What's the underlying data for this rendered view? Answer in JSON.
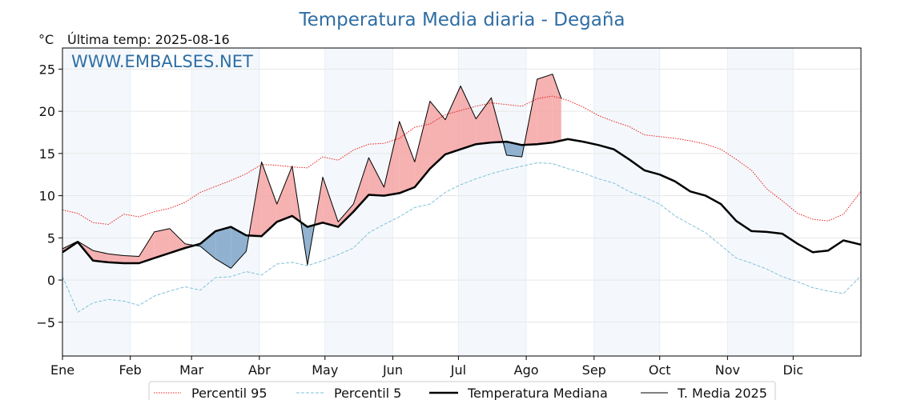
{
  "page": {
    "title": "Temperatura Media diaria - Degaña",
    "unit_label": "°C",
    "last_temp_label": "Última temp: 2025-08-16",
    "watermark": "WWW.EMBALSES.NET"
  },
  "chart_data": {
    "type": "line",
    "title": "Temperatura Media diaria - Degaña",
    "ylabel": "°C",
    "ylim": [
      -9,
      27.5
    ],
    "xlim": [
      1,
      366
    ],
    "yticks": [
      -5,
      0,
      5,
      10,
      15,
      20,
      25
    ],
    "grid": true,
    "legend_position": "bottom",
    "months": [
      {
        "label": "Ene",
        "start": 1
      },
      {
        "label": "Feb",
        "start": 32
      },
      {
        "label": "Mar",
        "start": 60
      },
      {
        "label": "Abr",
        "start": 91
      },
      {
        "label": "May",
        "start": 121
      },
      {
        "label": "Jun",
        "start": 152
      },
      {
        "label": "Jul",
        "start": 182
      },
      {
        "label": "Ago",
        "start": 213
      },
      {
        "label": "Sep",
        "start": 244
      },
      {
        "label": "Oct",
        "start": 274
      },
      {
        "label": "Nov",
        "start": 305
      },
      {
        "label": "Dic",
        "start": 335
      }
    ],
    "shaded_spans": [
      [
        1,
        32
      ],
      [
        60,
        91
      ],
      [
        121,
        152
      ],
      [
        182,
        213
      ],
      [
        244,
        274
      ],
      [
        305,
        335
      ]
    ],
    "series": [
      {
        "name": "Percentil 95",
        "color": "#e8201c",
        "style": "dotted",
        "x": [
          1,
          8,
          15,
          22,
          29,
          36,
          43,
          50,
          57,
          64,
          71,
          78,
          85,
          92,
          99,
          106,
          113,
          120,
          127,
          134,
          141,
          148,
          155,
          162,
          169,
          176,
          183,
          190,
          197,
          204,
          211,
          218,
          225,
          232,
          239,
          246,
          253,
          260,
          267,
          274,
          281,
          288,
          295,
          302,
          309,
          316,
          323,
          330,
          337,
          344,
          351,
          358,
          366
        ],
        "values": [
          8.3,
          7.9,
          6.8,
          6.6,
          7.8,
          7.5,
          8.1,
          8.5,
          9.2,
          10.4,
          11.1,
          11.8,
          12.6,
          13.7,
          13.6,
          13.4,
          13.3,
          14.6,
          14.2,
          15.4,
          16.1,
          16.2,
          16.8,
          18.1,
          18.5,
          19.6,
          20.1,
          20.6,
          21.0,
          20.8,
          20.6,
          21.5,
          21.8,
          21.3,
          20.5,
          19.5,
          18.8,
          18.2,
          17.2,
          17.0,
          16.8,
          16.5,
          16.1,
          15.5,
          14.3,
          13.0,
          10.8,
          9.4,
          7.9,
          7.2,
          7.0,
          7.8,
          10.5
        ]
      },
      {
        "name": "Percentil 5",
        "color": "#7fc0d8",
        "style": "dashed",
        "x": [
          1,
          8,
          15,
          22,
          29,
          36,
          43,
          50,
          57,
          64,
          71,
          78,
          85,
          92,
          99,
          106,
          113,
          120,
          127,
          134,
          141,
          148,
          155,
          162,
          169,
          176,
          183,
          190,
          197,
          204,
          211,
          218,
          225,
          232,
          239,
          246,
          253,
          260,
          267,
          274,
          281,
          288,
          295,
          302,
          309,
          316,
          323,
          330,
          337,
          344,
          351,
          358,
          366
        ],
        "values": [
          0.4,
          -3.8,
          -2.7,
          -2.3,
          -2.5,
          -3.0,
          -1.9,
          -1.3,
          -0.8,
          -1.2,
          0.3,
          0.4,
          1.0,
          0.6,
          1.9,
          2.1,
          1.7,
          2.3,
          3.0,
          3.8,
          5.6,
          6.6,
          7.5,
          8.6,
          9.0,
          10.4,
          11.3,
          12.0,
          12.6,
          13.1,
          13.5,
          13.9,
          13.8,
          13.2,
          12.7,
          12.0,
          11.5,
          10.5,
          9.8,
          9.0,
          7.6,
          6.6,
          5.6,
          4.1,
          2.6,
          2.0,
          1.3,
          0.4,
          -0.2,
          -0.9,
          -1.3,
          -1.6,
          0.5
        ]
      },
      {
        "name": "Temperatura Mediana",
        "color": "#000000",
        "style": "solid-thick",
        "x": [
          1,
          8,
          15,
          22,
          29,
          36,
          43,
          50,
          57,
          64,
          71,
          78,
          85,
          92,
          99,
          106,
          113,
          120,
          127,
          134,
          141,
          148,
          155,
          162,
          169,
          176,
          183,
          190,
          197,
          204,
          211,
          218,
          225,
          232,
          239,
          246,
          253,
          260,
          267,
          274,
          281,
          288,
          295,
          302,
          309,
          316,
          323,
          330,
          337,
          344,
          351,
          358,
          366
        ],
        "values": [
          3.3,
          4.5,
          2.3,
          2.1,
          2.0,
          2.0,
          2.6,
          3.2,
          3.8,
          4.3,
          5.8,
          6.3,
          5.3,
          5.2,
          6.9,
          7.6,
          6.3,
          6.8,
          6.3,
          8.1,
          10.1,
          10.0,
          10.3,
          11.0,
          13.2,
          14.9,
          15.5,
          16.1,
          16.3,
          16.4,
          16.0,
          16.1,
          16.3,
          16.7,
          16.4,
          16.0,
          15.5,
          14.3,
          13.0,
          12.5,
          11.7,
          10.5,
          10.0,
          9.0,
          7.0,
          5.8,
          5.7,
          5.5,
          4.3,
          3.3,
          3.5,
          4.7,
          4.2
        ]
      },
      {
        "name": "T. Media 2025",
        "color": "#000000",
        "style": "solid-thin",
        "x": [
          1,
          8,
          15,
          22,
          29,
          36,
          43,
          50,
          57,
          64,
          71,
          78,
          85,
          92,
          99,
          106,
          113,
          120,
          127,
          134,
          141,
          148,
          155,
          162,
          169,
          176,
          183,
          190,
          197,
          204,
          211,
          218,
          225,
          229
        ],
        "values": [
          3.7,
          4.6,
          3.5,
          3.1,
          2.9,
          2.8,
          5.7,
          6.1,
          4.3,
          4.0,
          2.5,
          1.4,
          3.4,
          14.0,
          9.0,
          13.5,
          1.8,
          12.2,
          6.9,
          9.0,
          14.5,
          11.0,
          18.8,
          14.0,
          21.2,
          19.0,
          23.0,
          19.1,
          21.6,
          14.8,
          14.6,
          23.8,
          24.4,
          21.5
        ]
      }
    ]
  }
}
